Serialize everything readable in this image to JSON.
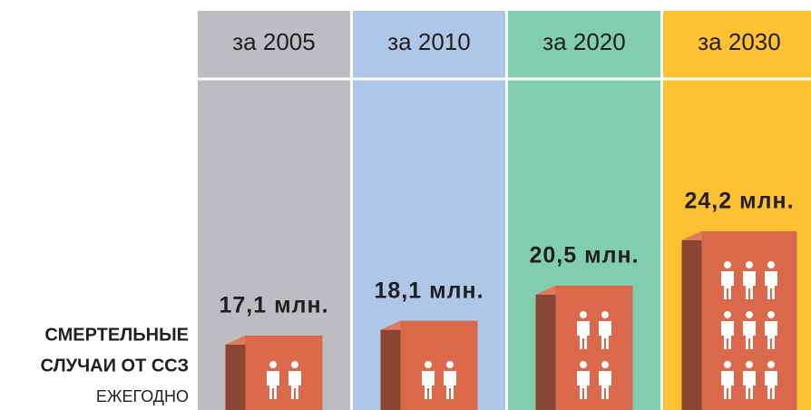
{
  "chart_data": {
    "type": "bar",
    "categories": [
      "за 2005",
      "за 2010",
      "за 2020",
      "за 2030"
    ],
    "values": [
      17.1,
      18.1,
      20.5,
      24.2
    ],
    "value_labels": [
      "17,1 млн.",
      "18,1 млн.",
      "20,5 млн.",
      "24,2 млн."
    ],
    "column_colors": [
      "#bcbdc0",
      "#aec6e8",
      "#80cdb0",
      "#fdc132"
    ],
    "color": "#d9694a",
    "side_label": [
      "СМЕРТЕЛЬНЫЕ",
      "СЛУЧАИ ОТ ССЗ",
      "ЕЖЕГОДНО"
    ]
  }
}
